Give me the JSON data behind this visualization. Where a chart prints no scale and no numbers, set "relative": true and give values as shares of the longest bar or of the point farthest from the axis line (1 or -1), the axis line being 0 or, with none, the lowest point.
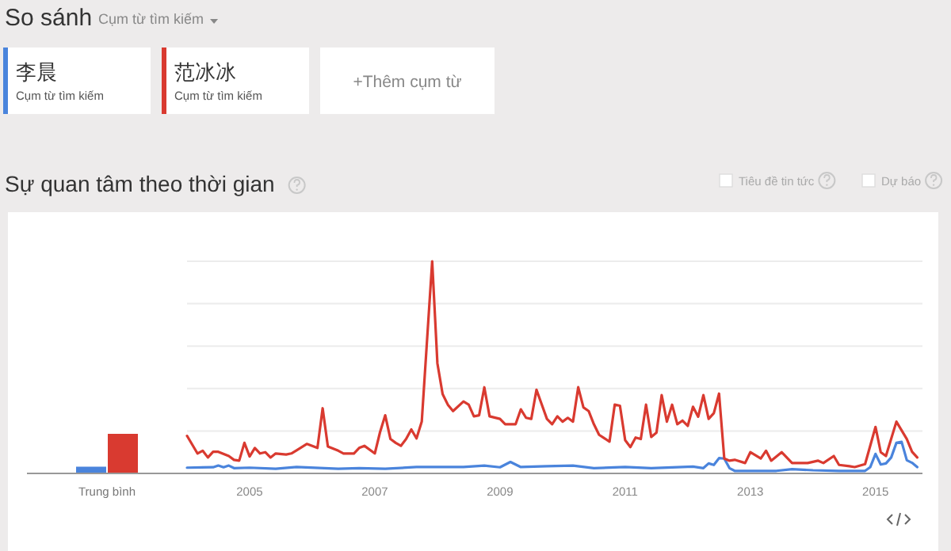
{
  "chart_data": [
    {
      "type": "bar",
      "categories": [
        "Trung bình"
      ],
      "relative": true,
      "series": [
        {
          "color": "#4a84dc",
          "values": [
            0.17
          ]
        },
        {
          "color": "#d93a30",
          "values": [
            1
          ]
        }
      ]
    },
    {
      "type": "line",
      "title": "Sự quan tâm theo thời gian",
      "relative": true,
      "grid": true,
      "legend": "top left",
      "xlim": [
        "2004-01",
        "2015-10"
      ],
      "xticks": [
        "2005",
        "2007",
        "2009",
        "2011",
        "2013",
        "2015"
      ],
      "annotations": [
        "So sánh",
        "Cụm từ tìm kiếm",
        "Cụm từ tìm kiếm",
        "Cụm từ tìm kiếm",
        "+Thêm cụm từ",
        "Tiêu đề tin tức",
        "Dự báo"
      ],
      "series": [
        {
          "name": "李晨",
          "color": "#4a84dc",
          "x": [
            "2004-01",
            "2004-06",
            "2004-07",
            "2004-08",
            "2004-09",
            "2004-10",
            "2005-01",
            "2005-06",
            "2005-10",
            "2006-06",
            "2006-10",
            "2007-03",
            "2007-09",
            "2008-01",
            "2008-06",
            "2008-10",
            "2009-01",
            "2009-03",
            "2009-05",
            "2009-10",
            "2010-03",
            "2010-07",
            "2011-01",
            "2011-06",
            "2012-02",
            "2012-04",
            "2012-05",
            "2012-06",
            "2012-07",
            "2012-08",
            "2012-09",
            "2012-10",
            "2013-06",
            "2013-09",
            "2014-01",
            "2014-06",
            "2014-11",
            "2014-12",
            "2015-01",
            "2015-02",
            "2015-03",
            "2015-04",
            "2015-05",
            "2015-06",
            "2015-07",
            "2015-08",
            "2015-09"
          ],
          "values": [
            0.027,
            0.029,
            0.037,
            0.029,
            0.037,
            0.025,
            0.027,
            0.022,
            0.03,
            0.022,
            0.025,
            0.022,
            0.03,
            0.03,
            0.03,
            0.037,
            0.029,
            0.054,
            0.03,
            0.034,
            0.037,
            0.025,
            0.03,
            0.025,
            0.032,
            0.025,
            0.047,
            0.04,
            0.072,
            0.07,
            0.025,
            0.012,
            0.012,
            0.02,
            0.015,
            0.012,
            0.012,
            0.03,
            0.092,
            0.042,
            0.047,
            0.075,
            0.144,
            0.149,
            0.062,
            0.05,
            0.03
          ]
        },
        {
          "name": "范冰冰",
          "color": "#d93a30",
          "x": [
            "2004-01",
            "2004-03",
            "2004-04",
            "2004-05",
            "2004-06",
            "2004-07",
            "2004-09",
            "2004-10",
            "2004-11",
            "2004-12",
            "2005-01",
            "2005-02",
            "2005-03",
            "2005-04",
            "2005-05",
            "2005-06",
            "2005-08",
            "2005-09",
            "2005-10",
            "2005-12",
            "2006-01",
            "2006-02",
            "2006-03",
            "2006-04",
            "2006-06",
            "2006-07",
            "2006-09",
            "2006-10",
            "2006-11",
            "2007-01",
            "2007-02",
            "2007-03",
            "2007-04",
            "2007-05",
            "2007-06",
            "2007-07",
            "2007-08",
            "2007-09",
            "2007-10",
            "2007-12",
            "2008-01",
            "2008-02",
            "2008-03",
            "2008-04",
            "2008-06",
            "2008-07",
            "2008-08",
            "2008-09",
            "2008-10",
            "2008-11",
            "2009-01",
            "2009-02",
            "2009-04",
            "2009-05",
            "2009-06",
            "2009-07",
            "2009-08",
            "2009-10",
            "2009-11",
            "2009-12",
            "2010-01",
            "2010-02",
            "2010-03",
            "2010-04",
            "2010-05",
            "2010-06",
            "2010-07",
            "2010-08",
            "2010-10",
            "2010-11",
            "2010-12",
            "2011-01",
            "2011-02",
            "2011-03",
            "2011-04",
            "2011-05",
            "2011-06",
            "2011-07",
            "2011-08",
            "2011-09",
            "2011-10",
            "2011-11",
            "2011-12",
            "2012-01",
            "2012-02",
            "2012-03",
            "2012-04",
            "2012-05",
            "2012-06",
            "2012-07",
            "2012-08",
            "2012-09",
            "2012-10",
            "2012-12",
            "2013-01",
            "2013-03",
            "2013-04",
            "2013-05",
            "2013-07",
            "2013-09",
            "2013-12",
            "2014-02",
            "2014-03",
            "2014-05",
            "2014-06",
            "2014-08",
            "2014-09",
            "2014-11",
            "2015-01",
            "2015-02",
            "2015-03",
            "2015-05",
            "2015-07",
            "2015-08",
            "2015-09"
          ],
          "values": [
            0.177,
            0.094,
            0.107,
            0.075,
            0.102,
            0.102,
            0.082,
            0.064,
            0.06,
            0.144,
            0.08,
            0.12,
            0.094,
            0.1,
            0.075,
            0.094,
            0.089,
            0.094,
            0.109,
            0.139,
            0.13,
            0.12,
            0.307,
            0.127,
            0.107,
            0.094,
            0.094,
            0.12,
            0.13,
            0.094,
            0.194,
            0.274,
            0.162,
            0.144,
            0.13,
            0.162,
            0.207,
            0.165,
            0.244,
            1,
            0.519,
            0.374,
            0.324,
            0.294,
            0.339,
            0.324,
            0.269,
            0.274,
            0.406,
            0.269,
            0.257,
            0.232,
            0.232,
            0.302,
            0.262,
            0.257,
            0.394,
            0.257,
            0.232,
            0.269,
            0.244,
            0.262,
            0.244,
            0.406,
            0.311,
            0.294,
            0.232,
            0.182,
            0.15,
            0.324,
            0.319,
            0.157,
            0.124,
            0.169,
            0.162,
            0.324,
            0.172,
            0.192,
            0.369,
            0.244,
            0.324,
            0.232,
            0.249,
            0.224,
            0.314,
            0.267,
            0.369,
            0.257,
            0.284,
            0.376,
            0.07,
            0.06,
            0.064,
            0.049,
            0.1,
            0.07,
            0.107,
            0.06,
            0.1,
            0.049,
            0.049,
            0.06,
            0.049,
            0.082,
            0.04,
            0.034,
            0.03,
            0.044,
            0.219,
            0.1,
            0.082,
            0.244,
            0.162,
            0.102,
            0.075
          ]
        }
      ]
    }
  ]
}
